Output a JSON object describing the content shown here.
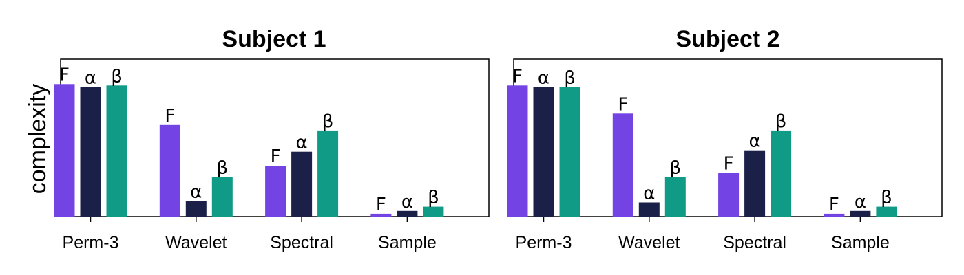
{
  "colors": {
    "F": "#7443e3",
    "alpha": "#1b2048",
    "beta": "#0f9b86",
    "frame": "#000000",
    "background": "#ffffff"
  },
  "chart_data": [
    {
      "type": "bar",
      "title": "Subject 1",
      "ylabel": "complexity",
      "xlabel": "",
      "categories": [
        "Perm-3",
        "Wavelet",
        "Spectral",
        "Sample"
      ],
      "bar_labels": [
        "F",
        "α",
        "β"
      ],
      "ylim": [
        0,
        1.0
      ],
      "yticks_shown": false,
      "grid": false,
      "series": [
        {
          "label": "F",
          "color_key": "F",
          "values": [
            0.94,
            0.65,
            0.36,
            0.02
          ]
        },
        {
          "label": "α",
          "color_key": "alpha",
          "values": [
            0.92,
            0.11,
            0.46,
            0.04
          ]
        },
        {
          "label": "β",
          "color_key": "beta",
          "values": [
            0.93,
            0.28,
            0.61,
            0.07
          ]
        }
      ]
    },
    {
      "type": "bar",
      "title": "Subject 2",
      "ylabel": "",
      "xlabel": "",
      "categories": [
        "Perm-3",
        "Wavelet",
        "Spectral",
        "Sample"
      ],
      "bar_labels": [
        "F",
        "α",
        "β"
      ],
      "ylim": [
        0,
        1.0
      ],
      "yticks_shown": false,
      "grid": false,
      "series": [
        {
          "label": "F",
          "color_key": "F",
          "values": [
            0.93,
            0.73,
            0.31,
            0.02
          ]
        },
        {
          "label": "α",
          "color_key": "alpha",
          "values": [
            0.92,
            0.1,
            0.47,
            0.04
          ]
        },
        {
          "label": "β",
          "color_key": "beta",
          "values": [
            0.92,
            0.28,
            0.61,
            0.07
          ]
        }
      ]
    }
  ]
}
